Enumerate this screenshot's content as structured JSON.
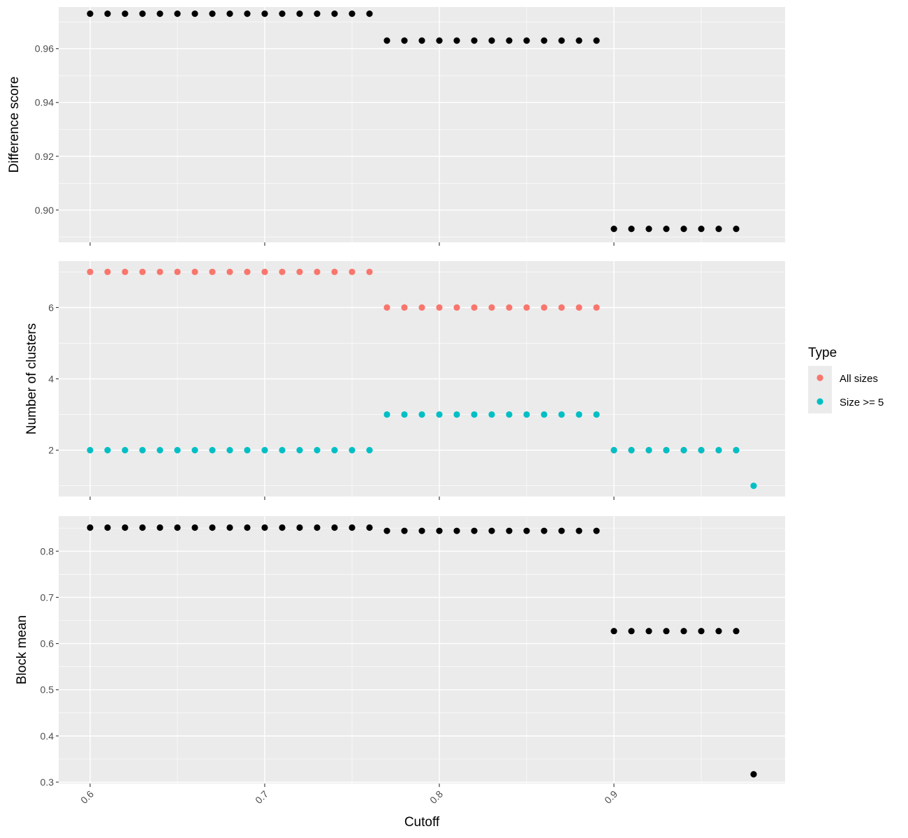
{
  "chart_data": {
    "type": "scatter",
    "facet_layout": "vertical, shared x axis",
    "xlabel": "Cutoff",
    "x_ticks": [
      0.6,
      0.7,
      0.8,
      0.9
    ],
    "x_tick_labels": [
      "0.6",
      "0.7",
      "0.8",
      "0.9"
    ],
    "xlim": [
      0.582,
      0.998
    ],
    "grid": true,
    "panels": [
      {
        "ylabel": "Difference score",
        "ylim": [
          0.888,
          0.9755
        ],
        "y_ticks": [
          0.9,
          0.92,
          0.94,
          0.96
        ],
        "y_tick_labels": [
          "0.90",
          "0.92",
          "0.94",
          "0.96"
        ],
        "series": [
          {
            "color": "#000000",
            "x": [
              0.6,
              0.61,
              0.62,
              0.63,
              0.64,
              0.65,
              0.66,
              0.67,
              0.68,
              0.69,
              0.7,
              0.71,
              0.72,
              0.73,
              0.74,
              0.75,
              0.76,
              0.77,
              0.78,
              0.79,
              0.8,
              0.81,
              0.82,
              0.83,
              0.84,
              0.85,
              0.86,
              0.87,
              0.88,
              0.89,
              0.9,
              0.91,
              0.92,
              0.93,
              0.94,
              0.95,
              0.96,
              0.97
            ],
            "y": [
              0.973,
              0.973,
              0.973,
              0.973,
              0.973,
              0.973,
              0.973,
              0.973,
              0.973,
              0.973,
              0.973,
              0.973,
              0.973,
              0.973,
              0.973,
              0.973,
              0.973,
              0.963,
              0.963,
              0.963,
              0.963,
              0.963,
              0.963,
              0.963,
              0.963,
              0.963,
              0.963,
              0.963,
              0.963,
              0.963,
              0.893,
              0.893,
              0.893,
              0.893,
              0.893,
              0.893,
              0.893,
              0.893
            ]
          }
        ]
      },
      {
        "ylabel": "Number of clusters",
        "ylim": [
          0.7,
          7.3
        ],
        "y_ticks": [
          2,
          4,
          6
        ],
        "y_tick_labels": [
          "2",
          "4",
          "6"
        ],
        "series": [
          {
            "name": "All sizes",
            "color": "#F8766D",
            "x": [
              0.6,
              0.61,
              0.62,
              0.63,
              0.64,
              0.65,
              0.66,
              0.67,
              0.68,
              0.69,
              0.7,
              0.71,
              0.72,
              0.73,
              0.74,
              0.75,
              0.76,
              0.77,
              0.78,
              0.79,
              0.8,
              0.81,
              0.82,
              0.83,
              0.84,
              0.85,
              0.86,
              0.87,
              0.88,
              0.89,
              0.9,
              0.91,
              0.92,
              0.93,
              0.94,
              0.95,
              0.96,
              0.97
            ],
            "y": [
              7,
              7,
              7,
              7,
              7,
              7,
              7,
              7,
              7,
              7,
              7,
              7,
              7,
              7,
              7,
              7,
              7,
              6,
              6,
              6,
              6,
              6,
              6,
              6,
              6,
              6,
              6,
              6,
              6,
              6,
              2,
              2,
              2,
              2,
              2,
              2,
              2,
              2
            ]
          },
          {
            "name": "Size >= 5",
            "color": "#00BFC4",
            "x": [
              0.6,
              0.61,
              0.62,
              0.63,
              0.64,
              0.65,
              0.66,
              0.67,
              0.68,
              0.69,
              0.7,
              0.71,
              0.72,
              0.73,
              0.74,
              0.75,
              0.76,
              0.77,
              0.78,
              0.79,
              0.8,
              0.81,
              0.82,
              0.83,
              0.84,
              0.85,
              0.86,
              0.87,
              0.88,
              0.89,
              0.9,
              0.91,
              0.92,
              0.93,
              0.94,
              0.95,
              0.96,
              0.97,
              0.98
            ],
            "y": [
              2,
              2,
              2,
              2,
              2,
              2,
              2,
              2,
              2,
              2,
              2,
              2,
              2,
              2,
              2,
              2,
              2,
              3,
              3,
              3,
              3,
              3,
              3,
              3,
              3,
              3,
              3,
              3,
              3,
              3,
              2,
              2,
              2,
              2,
              2,
              2,
              2,
              2,
              1
            ]
          }
        ]
      },
      {
        "ylabel": "Block mean",
        "ylim": [
          0.297,
          0.876
        ],
        "y_ticks": [
          0.3,
          0.4,
          0.5,
          0.6,
          0.7,
          0.8
        ],
        "y_tick_labels": [
          "0.3",
          "0.4",
          "0.5",
          "0.6",
          "0.7",
          "0.8"
        ],
        "series": [
          {
            "color": "#000000",
            "x": [
              0.6,
              0.61,
              0.62,
              0.63,
              0.64,
              0.65,
              0.66,
              0.67,
              0.68,
              0.69,
              0.7,
              0.71,
              0.72,
              0.73,
              0.74,
              0.75,
              0.76,
              0.77,
              0.78,
              0.79,
              0.8,
              0.81,
              0.82,
              0.83,
              0.84,
              0.85,
              0.86,
              0.87,
              0.88,
              0.89,
              0.9,
              0.91,
              0.92,
              0.93,
              0.94,
              0.95,
              0.96,
              0.97,
              0.98
            ],
            "y": [
              0.851,
              0.851,
              0.851,
              0.851,
              0.851,
              0.851,
              0.851,
              0.851,
              0.851,
              0.851,
              0.851,
              0.851,
              0.851,
              0.851,
              0.851,
              0.851,
              0.851,
              0.844,
              0.844,
              0.844,
              0.844,
              0.844,
              0.844,
              0.844,
              0.844,
              0.844,
              0.844,
              0.844,
              0.844,
              0.844,
              0.627,
              0.627,
              0.627,
              0.627,
              0.627,
              0.627,
              0.627,
              0.627,
              0.317
            ]
          }
        ]
      }
    ],
    "legend": {
      "title": "Type",
      "position": "right",
      "entries": [
        {
          "label": "All sizes",
          "color": "#F8766D"
        },
        {
          "label": "Size >= 5",
          "color": "#00BFC4"
        }
      ]
    }
  }
}
